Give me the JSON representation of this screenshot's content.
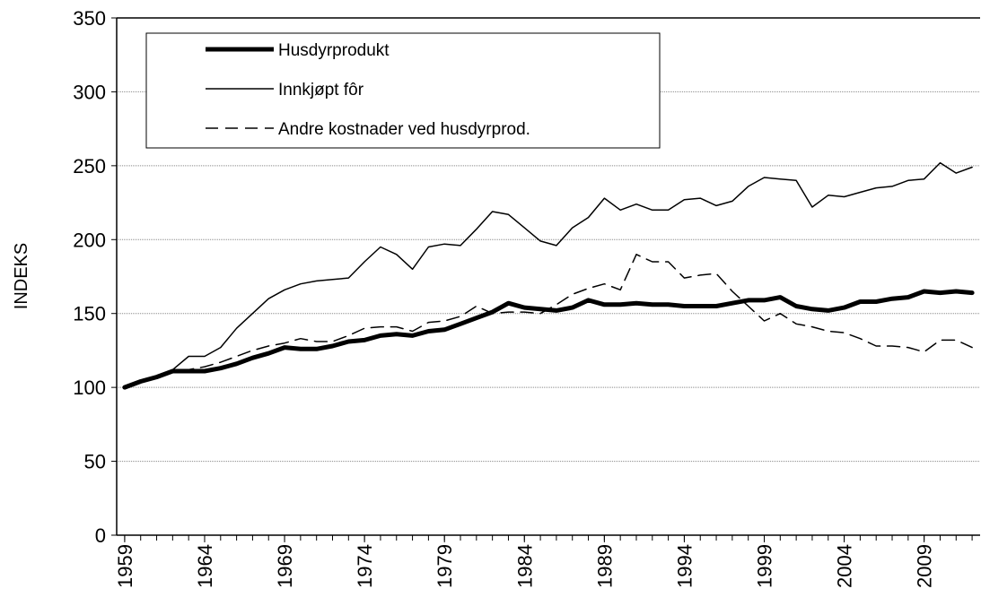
{
  "chart_data": {
    "type": "line",
    "y_label": "INDEKS",
    "x": [
      1959,
      1960,
      1961,
      1962,
      1963,
      1964,
      1965,
      1966,
      1967,
      1968,
      1969,
      1970,
      1971,
      1972,
      1973,
      1974,
      1975,
      1976,
      1977,
      1978,
      1979,
      1980,
      1981,
      1982,
      1983,
      1984,
      1985,
      1986,
      1987,
      1988,
      1989,
      1990,
      1991,
      1992,
      1993,
      1994,
      1995,
      1996,
      1997,
      1998,
      1999,
      2000,
      2001,
      2002,
      2003,
      2004,
      2005,
      2006,
      2007,
      2008,
      2009,
      2010,
      2011,
      2012
    ],
    "series": [
      {
        "name": "Husdyrprodukt",
        "color": "#000000",
        "width": 5,
        "dash": "solid",
        "values": [
          100,
          104,
          107,
          111,
          111,
          111,
          113,
          116,
          120,
          123,
          127,
          126,
          126,
          128,
          131,
          132,
          135,
          136,
          135,
          138,
          139,
          143,
          147,
          151,
          157,
          154,
          153,
          152,
          154,
          159,
          156,
          156,
          157,
          156,
          156,
          155,
          155,
          155,
          157,
          159,
          159,
          161,
          155,
          153,
          152,
          154,
          158,
          158,
          160,
          161,
          165,
          164,
          165,
          164
        ]
      },
      {
        "name": "Innkjøpt fôr",
        "color": "#000000",
        "width": 1.5,
        "dash": "solid",
        "values": [
          100,
          104,
          108,
          112,
          121,
          121,
          127,
          140,
          150,
          160,
          166,
          170,
          172,
          173,
          174,
          185,
          195,
          190,
          180,
          195,
          197,
          196,
          207,
          219,
          217,
          208,
          199,
          196,
          208,
          215,
          228,
          220,
          224,
          220,
          220,
          227,
          228,
          223,
          226,
          236,
          242,
          241,
          240,
          222,
          230,
          229,
          232,
          235,
          236,
          240,
          241,
          252,
          245,
          249
        ]
      },
      {
        "name": "Andre kostnader ved husdyrprod.",
        "color": "#000000",
        "width": 1.5,
        "dash": "dashed",
        "values": [
          100,
          105,
          108,
          111,
          112,
          114,
          117,
          121,
          125,
          128,
          130,
          133,
          131,
          131,
          135,
          140,
          141,
          141,
          138,
          144,
          145,
          148,
          155,
          150,
          151,
          151,
          150,
          156,
          163,
          167,
          170,
          166,
          190,
          185,
          185,
          174,
          176,
          177,
          165,
          155,
          145,
          150,
          143,
          141,
          138,
          137,
          133,
          128,
          128,
          127,
          124,
          132,
          132,
          127
        ]
      }
    ],
    "xlim": [
      1958.5,
      2012.5
    ],
    "xticks": [
      1959,
      1964,
      1969,
      1974,
      1979,
      1984,
      1989,
      1994,
      1999,
      2004,
      2009
    ],
    "ylim": [
      0,
      350
    ],
    "yticks": [
      0,
      50,
      100,
      150,
      200,
      250,
      300,
      350
    ],
    "grid": true,
    "legend": "top-left"
  }
}
